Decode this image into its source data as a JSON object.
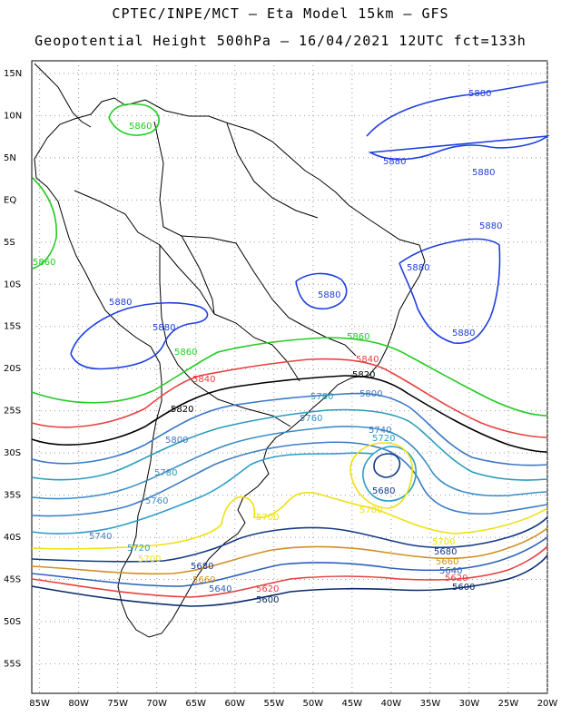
{
  "header": {
    "line1": "CPTEC/INPE/MCT –  Eta Model 15km – GFS",
    "line2": "Geopotential Height 500hPa – 16/04/2021 12UTC fct=133h"
  },
  "axes": {
    "lat_labels": [
      "15N",
      "10N",
      "5N",
      "EQ",
      "5S",
      "10S",
      "15S",
      "20S",
      "25S",
      "30S",
      "35S",
      "40S",
      "45S",
      "50S",
      "55S"
    ],
    "lon_labels": [
      "85W",
      "80W",
      "75W",
      "70W",
      "65W",
      "60W",
      "55W",
      "50W",
      "45W",
      "40W",
      "35W",
      "30W",
      "25W",
      "20W"
    ],
    "lon_range": [
      -86,
      -20
    ],
    "lat_range": [
      -58.5,
      16.5
    ],
    "grid": "dotted"
  },
  "colors": {
    "c5880": "#1f3fe0",
    "c5860": "#22cc22",
    "c5840": "#e84040",
    "c5820": "#000000",
    "c5800": "#3a78c8",
    "c5780": "#2a9cb8",
    "c5760": "#3c8ec8",
    "c5740": "#3e7cc4",
    "c5720": "#2a9ec8",
    "c5700": "#f0e010",
    "c5680": "#163a88",
    "c5660": "#d09020",
    "c5640": "#2a60b8",
    "c5620": "#e84040",
    "c5600": "#0a2a6a",
    "coast": "#000000"
  },
  "contour_labels": [
    {
      "text": "5880",
      "color_key": "c5880"
    },
    {
      "text": "5880",
      "color_key": "c5880"
    },
    {
      "text": "5880",
      "color_key": "c5880"
    },
    {
      "text": "5880",
      "color_key": "c5880"
    },
    {
      "text": "5880",
      "color_key": "c5880"
    },
    {
      "text": "5880",
      "color_key": "c5880"
    },
    {
      "text": "5880",
      "color_key": "c5880"
    },
    {
      "text": "5880",
      "color_key": "c5880"
    },
    {
      "text": "5880",
      "color_key": "c5880"
    },
    {
      "text": "5860",
      "color_key": "c5860"
    },
    {
      "text": "5860",
      "color_key": "c5860"
    },
    {
      "text": "5860",
      "color_key": "c5860"
    },
    {
      "text": "5860",
      "color_key": "c5860"
    },
    {
      "text": "5840",
      "color_key": "c5840"
    },
    {
      "text": "5840",
      "color_key": "c5840"
    },
    {
      "text": "5820",
      "color_key": "c5820"
    },
    {
      "text": "5820",
      "color_key": "c5820"
    },
    {
      "text": "5800",
      "color_key": "c5800"
    },
    {
      "text": "5800",
      "color_key": "c5800"
    },
    {
      "text": "5780",
      "color_key": "c5780"
    },
    {
      "text": "5780",
      "color_key": "c5780"
    },
    {
      "text": "5760",
      "color_key": "c5760"
    },
    {
      "text": "5760",
      "color_key": "c5760"
    },
    {
      "text": "5740",
      "color_key": "c5740"
    },
    {
      "text": "5740",
      "color_key": "c5740"
    },
    {
      "text": "5720",
      "color_key": "c5720"
    },
    {
      "text": "5720",
      "color_key": "c5720"
    },
    {
      "text": "5700",
      "color_key": "c5700"
    },
    {
      "text": "5700",
      "color_key": "c5700"
    },
    {
      "text": "5700",
      "color_key": "c5700"
    },
    {
      "text": "5700",
      "color_key": "c5700"
    },
    {
      "text": "5680",
      "color_key": "c5680"
    },
    {
      "text": "5680",
      "color_key": "c5680"
    },
    {
      "text": "5680",
      "color_key": "c5680"
    },
    {
      "text": "5660",
      "color_key": "c5660"
    },
    {
      "text": "5660",
      "color_key": "c5660"
    },
    {
      "text": "5640",
      "color_key": "c5640"
    },
    {
      "text": "5640",
      "color_key": "c5640"
    },
    {
      "text": "5620",
      "color_key": "c5620"
    },
    {
      "text": "5620",
      "color_key": "c5620"
    },
    {
      "text": "5600",
      "color_key": "c5600"
    },
    {
      "text": "5600",
      "color_key": "c5600"
    }
  ]
}
